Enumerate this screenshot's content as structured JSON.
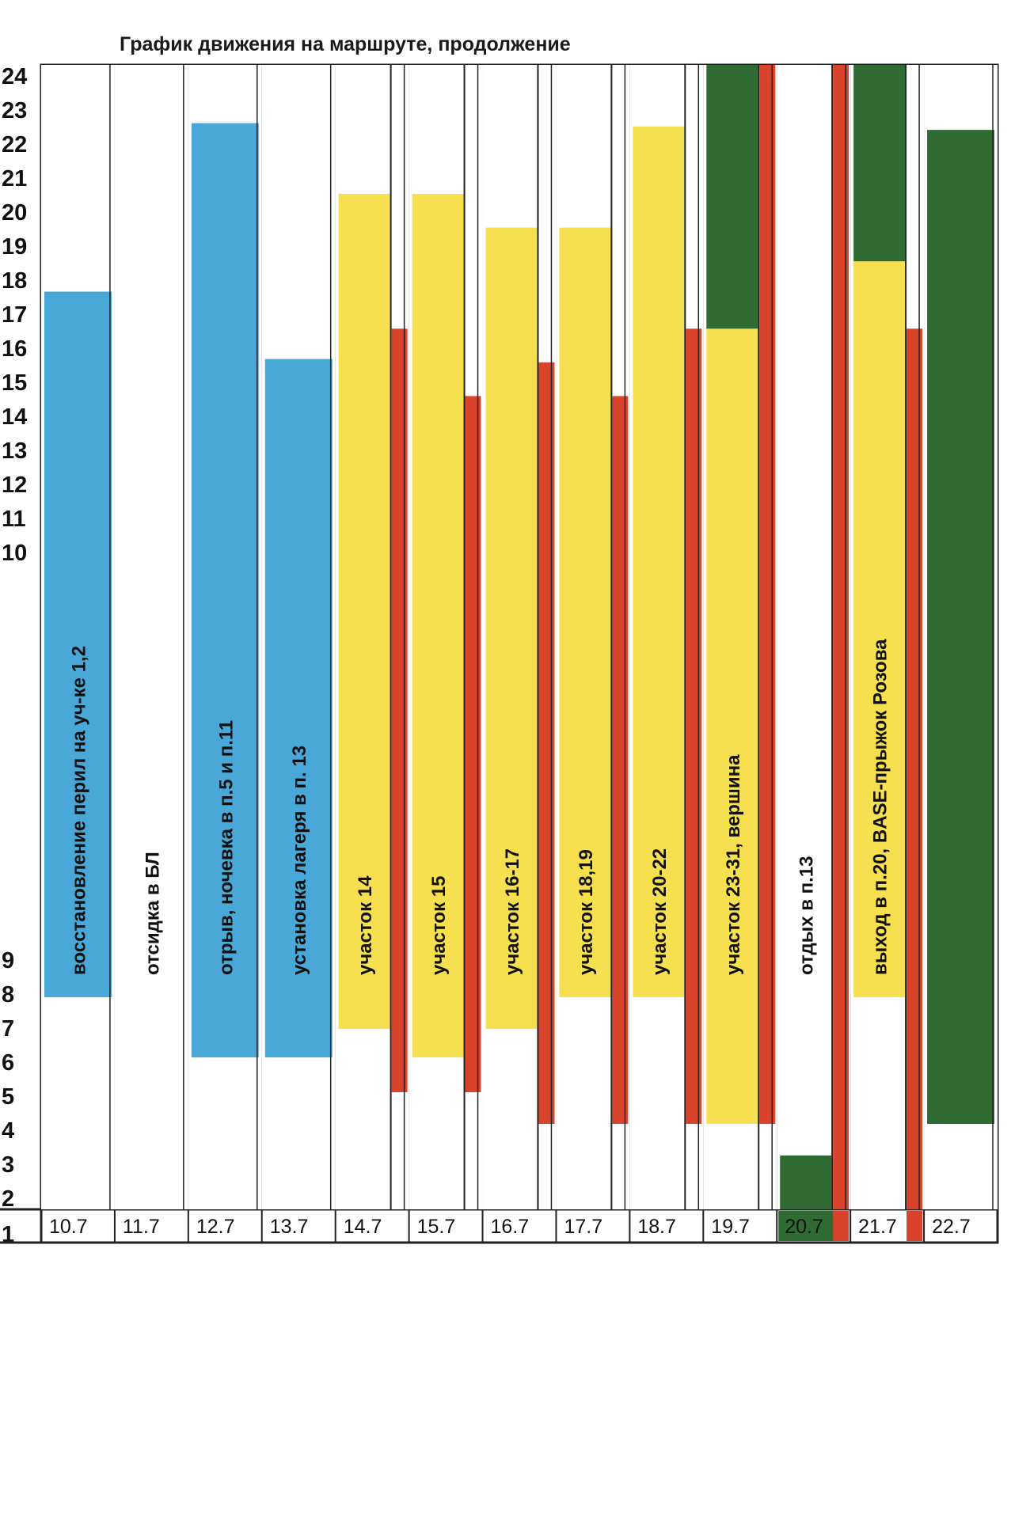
{
  "chart_data": {
    "type": "table",
    "title": "График движения на маршруте, продолжение",
    "hours_visible": [
      "24",
      "23",
      "22",
      "21",
      "20",
      "19",
      "18",
      "17",
      "16",
      "15",
      "14",
      "13",
      "12",
      "11",
      "10",
      "9",
      "8",
      "7",
      "6",
      "5",
      "4",
      "3",
      "2",
      "1"
    ],
    "colors": {
      "blue": "#4aa8d8",
      "yellow": "#f7e04f",
      "red": "#d9432b",
      "green": "#2f6b33",
      "white": "#ffffff",
      "line": "#222222"
    },
    "days": [
      {
        "date": "10.7",
        "label": "восстановление перил на уч-ке 1,2",
        "segments": [
          {
            "color": "blue",
            "from": 7.7,
            "to": 17.6
          }
        ],
        "red_segments": []
      },
      {
        "date": "11.7",
        "label": "отсидка в БЛ",
        "segments": [],
        "red_segments": []
      },
      {
        "date": "12.7",
        "label": "отрыв, ночевка в п.5 и п.11",
        "segments": [
          {
            "color": "blue",
            "from": 5.8,
            "to": 22.6
          }
        ],
        "red_segments": []
      },
      {
        "date": "13.7",
        "label": "установка лагеря в п. 13",
        "segments": [
          {
            "color": "blue",
            "from": 5.8,
            "to": 15.6
          }
        ],
        "red_segments": []
      },
      {
        "date": "14.7",
        "label": "участок 14",
        "segments": [
          {
            "color": "yellow",
            "from": 6.7,
            "to": 20.5
          }
        ],
        "red_segments": [
          {
            "from": 4.7,
            "to": 16.5
          }
        ]
      },
      {
        "date": "15.7",
        "label": "участок 15",
        "segments": [
          {
            "color": "yellow",
            "from": 5.8,
            "to": 20.5
          }
        ],
        "red_segments": [
          {
            "from": 4.7,
            "to": 14.5
          }
        ]
      },
      {
        "date": "16.7",
        "label": "участок 16-17",
        "segments": [
          {
            "color": "yellow",
            "from": 6.7,
            "to": 19.5
          }
        ],
        "red_segments": [
          {
            "from": 3.7,
            "to": 15.5
          }
        ]
      },
      {
        "date": "17.7",
        "label": "участок 18,19",
        "segments": [
          {
            "color": "yellow",
            "from": 7.7,
            "to": 19.5
          }
        ],
        "red_segments": [
          {
            "from": 3.7,
            "to": 14.5
          }
        ]
      },
      {
        "date": "18.7",
        "label": "участок 20-22",
        "segments": [
          {
            "color": "yellow",
            "from": 7.7,
            "to": 22.5
          }
        ],
        "red_segments": [
          {
            "from": 3.7,
            "to": 16.5
          }
        ]
      },
      {
        "date": "19.7",
        "label": "участок 23-31, вершина",
        "segments": [
          {
            "color": "yellow",
            "from": 3.7,
            "to": 16.5
          },
          {
            "color": "green",
            "from": 16.5,
            "to": 24.5
          }
        ],
        "red_segments": [
          {
            "from": 3.7,
            "to": 24.5
          }
        ]
      },
      {
        "date": "20.7",
        "label": "отдых в п.13",
        "segments": [
          {
            "color": "green",
            "from": 0.8,
            "to": 2.7
          }
        ],
        "red_segments": [
          {
            "from": 0.8,
            "to": 24.5
          }
        ]
      },
      {
        "date": "21.7",
        "label": "выход в п.20, BASE-прыжок Розова",
        "segments": [
          {
            "color": "yellow",
            "from": 7.7,
            "to": 18.5
          },
          {
            "color": "green",
            "from": 18.5,
            "to": 24.5
          }
        ],
        "red_segments": [
          {
            "from": 0.8,
            "to": 16.5
          }
        ]
      },
      {
        "date": "22.7",
        "label": "",
        "segments": [
          {
            "color": "green",
            "from": 3.7,
            "to": 22.4
          }
        ],
        "red_segments": []
      }
    ]
  }
}
